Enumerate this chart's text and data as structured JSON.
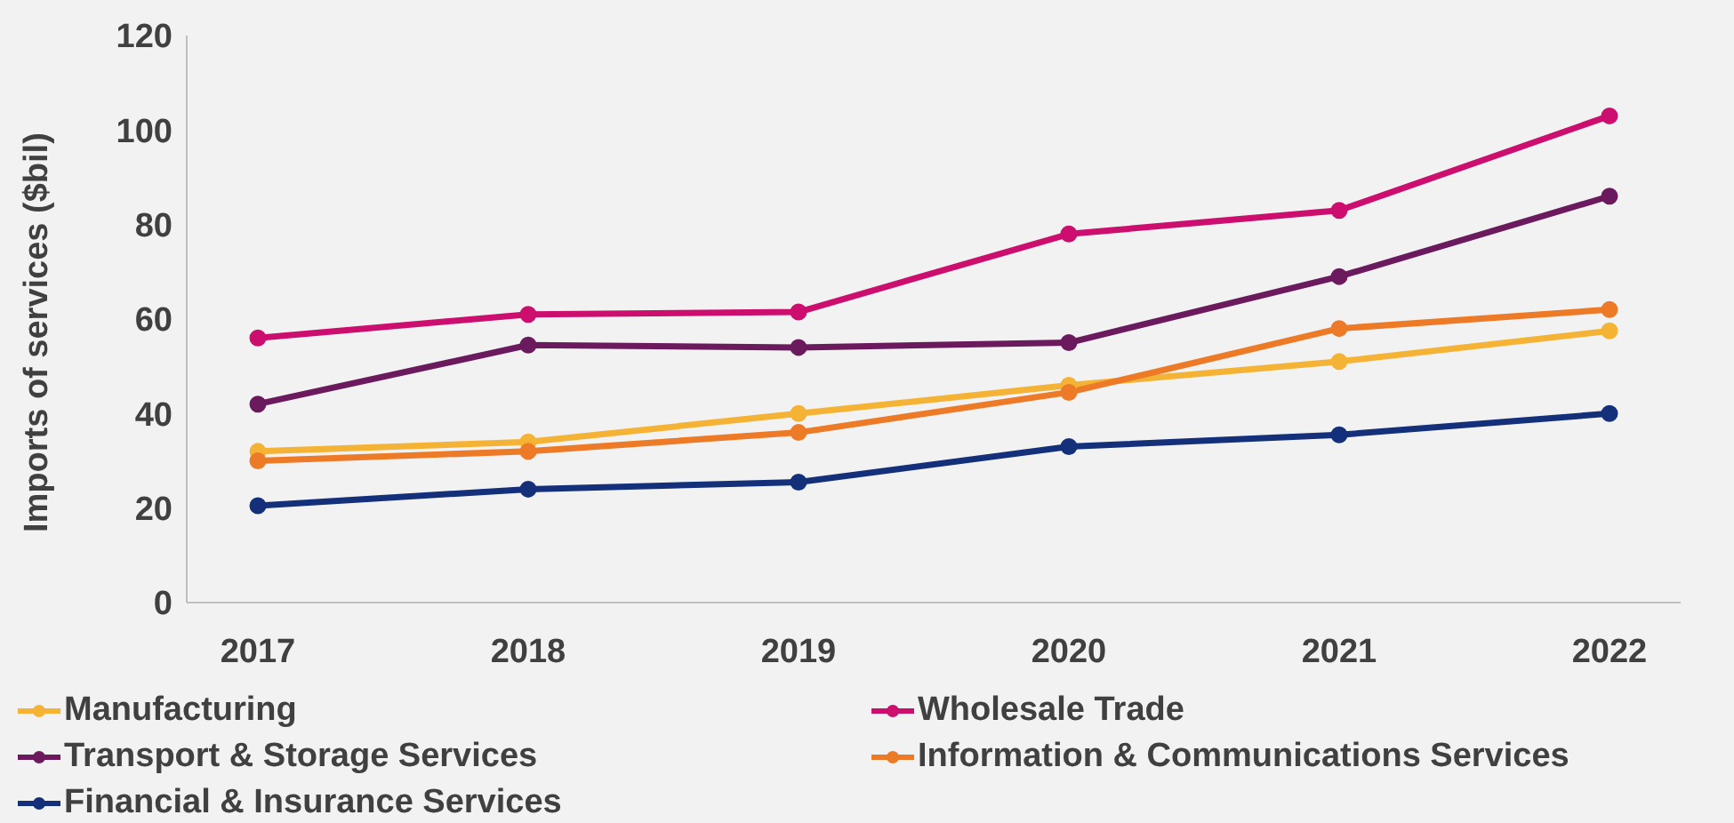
{
  "chart_data": {
    "type": "line",
    "ylabel": "Imports of services ($bil)",
    "categories": [
      "2017",
      "2018",
      "2019",
      "2020",
      "2021",
      "2022"
    ],
    "ylim": [
      0,
      120
    ],
    "yticks": [
      0,
      20,
      40,
      60,
      80,
      100,
      120
    ],
    "grid": false,
    "legend": "bottom",
    "marker": "circle",
    "line_style": "solid",
    "series": [
      {
        "name": "Manufacturing",
        "color": "#f5b335",
        "values": [
          32,
          34,
          40,
          46,
          51,
          57.5
        ]
      },
      {
        "name": "Wholesale Trade",
        "color": "#cc0e6e",
        "values": [
          56,
          61,
          61.5,
          78,
          83,
          103
        ]
      },
      {
        "name": "Transport & Storage Services",
        "color": "#6b1a5e",
        "values": [
          42,
          54.5,
          54,
          55,
          69,
          86
        ]
      },
      {
        "name": "Information & Communications Services",
        "color": "#ec7a26",
        "values": [
          30,
          32,
          36,
          44.5,
          58,
          62
        ]
      },
      {
        "name": "Financial & Insurance Services",
        "color": "#14307a",
        "values": [
          20.5,
          24,
          25.5,
          33,
          35.5,
          40
        ]
      }
    ]
  }
}
